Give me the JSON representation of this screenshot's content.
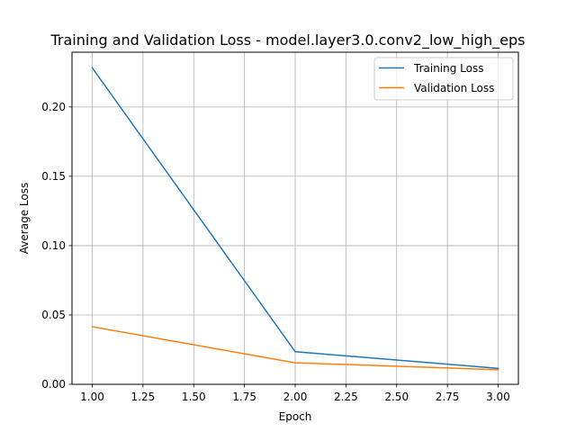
{
  "chart_data": {
    "type": "line",
    "title": "Training and Validation Loss - model.layer3.0.conv2_low_high_eps",
    "xlabel": "Epoch",
    "ylabel": "Average Loss",
    "x": [
      1.0,
      2.0,
      3.0
    ],
    "xlim": [
      0.9,
      3.1
    ],
    "ylim": [
      0.0,
      0.2395
    ],
    "xticks": [
      1.0,
      1.25,
      1.5,
      1.75,
      2.0,
      2.25,
      2.5,
      2.75,
      3.0
    ],
    "xtick_labels": [
      "1.00",
      "1.25",
      "1.50",
      "1.75",
      "2.00",
      "2.25",
      "2.50",
      "2.75",
      "3.00"
    ],
    "yticks": [
      0.0,
      0.05,
      0.1,
      0.15,
      0.2
    ],
    "ytick_labels": [
      "0.00",
      "0.05",
      "0.10",
      "0.15",
      "0.20"
    ],
    "grid": true,
    "legend_position": "top-right",
    "series": [
      {
        "name": "Training Loss",
        "color": "#1f77b4",
        "values": [
          0.2282,
          0.0235,
          0.0115
        ]
      },
      {
        "name": "Validation Loss",
        "color": "#ff7f0e",
        "values": [
          0.0415,
          0.0155,
          0.0105
        ]
      }
    ]
  }
}
